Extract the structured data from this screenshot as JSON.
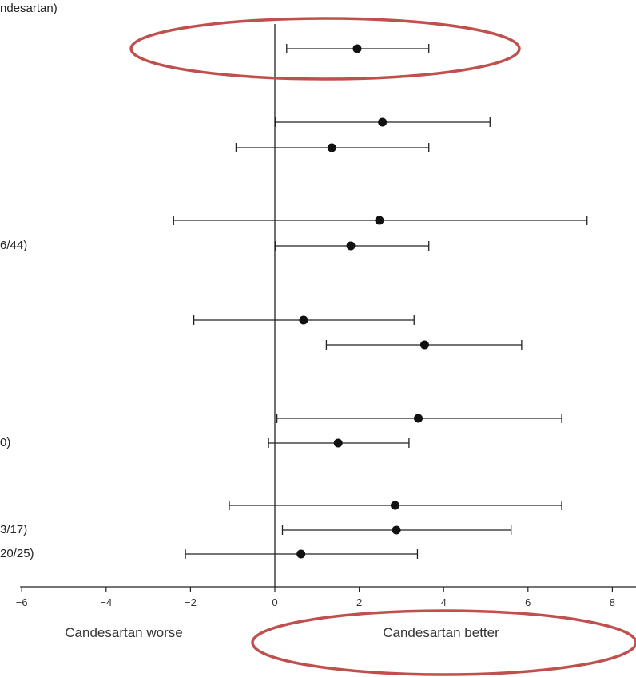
{
  "chart_data": {
    "type": "forest",
    "header_fragment": "ndesartan)",
    "xlim": [
      -6,
      8
    ],
    "xticks": [
      {
        "value": -6,
        "label": "−6"
      },
      {
        "value": -4,
        "label": "−4"
      },
      {
        "value": -2,
        "label": "−2"
      },
      {
        "value": 0,
        "label": "0"
      },
      {
        "value": 2,
        "label": "2"
      },
      {
        "value": 4,
        "label": "4"
      },
      {
        "value": 6,
        "label": "6"
      },
      {
        "value": 8,
        "label": "8"
      }
    ],
    "direction_labels": {
      "left": "Candesartan worse",
      "right": "Candesartan better"
    },
    "rows": [
      {
        "label": "",
        "estimate": 1.95,
        "lower": 0.28,
        "upper": 3.65
      },
      {
        "label": "",
        "estimate": 2.55,
        "lower": 0.02,
        "upper": 5.1
      },
      {
        "label": "",
        "estimate": 1.35,
        "lower": -0.92,
        "upper": 3.65
      },
      {
        "label": "",
        "estimate": 2.48,
        "lower": -2.4,
        "upper": 7.4
      },
      {
        "label": "6/44)",
        "estimate": 1.8,
        "lower": 0.02,
        "upper": 3.65
      },
      {
        "label": "",
        "estimate": 0.68,
        "lower": -1.92,
        "upper": 3.3
      },
      {
        "label": "",
        "estimate": 3.55,
        "lower": 1.22,
        "upper": 5.85
      },
      {
        "label": "",
        "estimate": 3.4,
        "lower": 0.05,
        "upper": 6.8
      },
      {
        "label": "0)",
        "estimate": 1.5,
        "lower": -0.15,
        "upper": 3.18
      },
      {
        "label": "",
        "estimate": 2.85,
        "lower": -1.08,
        "upper": 6.8
      },
      {
        "label": "3/17)",
        "estimate": 2.88,
        "lower": 0.18,
        "upper": 5.6
      },
      {
        "label": "20/25)",
        "estimate": 0.62,
        "lower": -2.12,
        "upper": 3.38
      }
    ],
    "highlight_color": "#c0504d",
    "grid": false
  }
}
